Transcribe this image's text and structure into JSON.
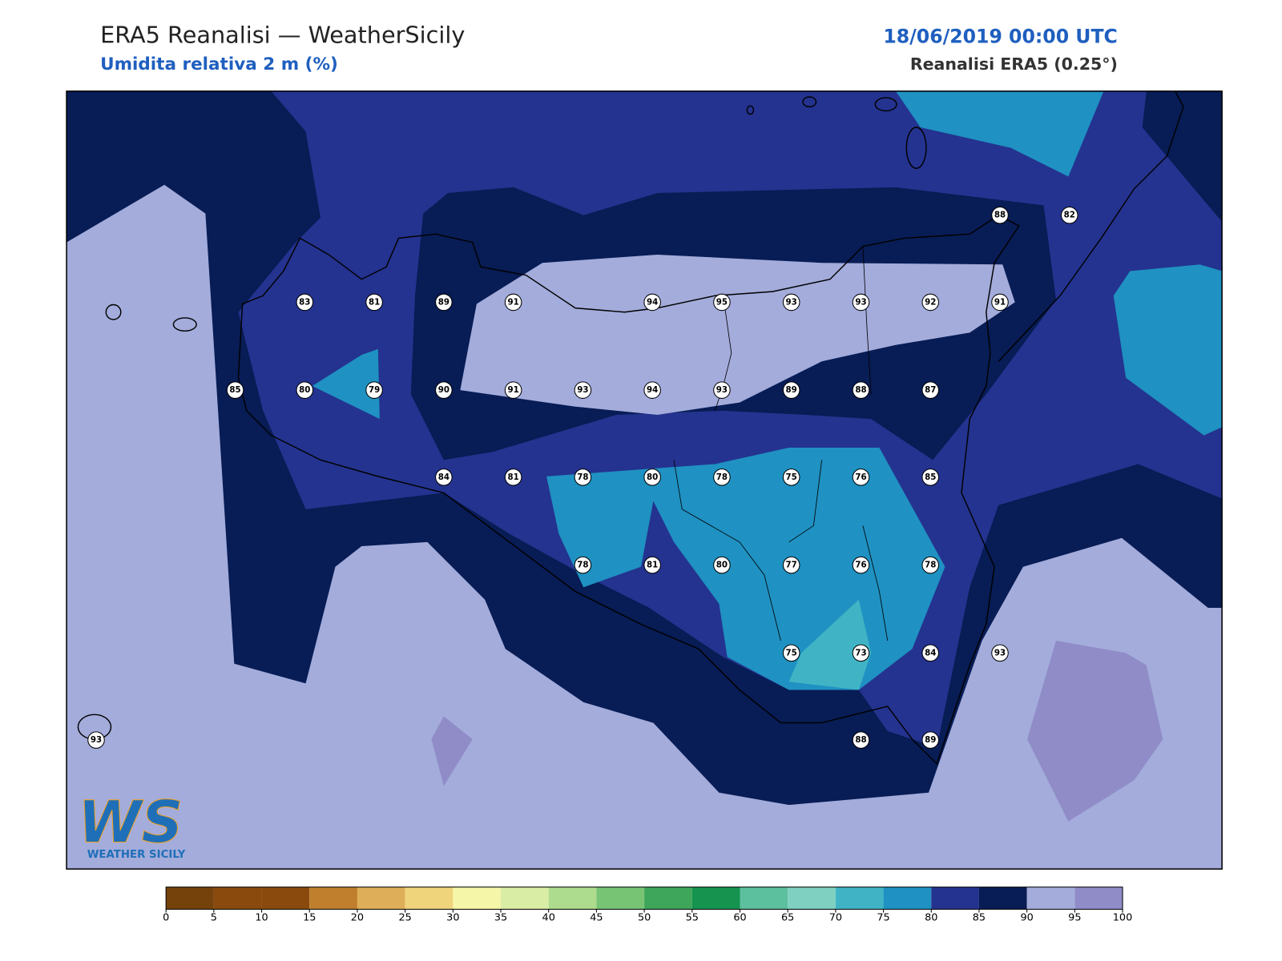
{
  "header": {
    "title": "ERA5 Reanalisi — WeatherSicily",
    "subtitle": "Umidita relativa 2 m (%)",
    "datetime": "18/06/2019 00:00 UTC",
    "source": "Reanalisi ERA5 (0.25°)"
  },
  "stations": [
    [
      null,
      null,
      null,
      null,
      null,
      null,
      null,
      null,
      null,
      null,
      null,
      null,
      null,
      88,
      82
    ],
    [
      null,
      null,
      null,
      83,
      81,
      89,
      91,
      null,
      94,
      95,
      93,
      93,
      92,
      91,
      null
    ],
    [
      null,
      null,
      85,
      80,
      79,
      90,
      91,
      93,
      94,
      93,
      89,
      88,
      87,
      null,
      null
    ],
    [
      null,
      null,
      null,
      null,
      null,
      84,
      81,
      78,
      80,
      78,
      75,
      76,
      85,
      null,
      null
    ],
    [
      null,
      null,
      null,
      null,
      null,
      null,
      null,
      78,
      81,
      80,
      77,
      76,
      78,
      null,
      null
    ],
    [
      null,
      null,
      null,
      null,
      null,
      null,
      null,
      null,
      null,
      null,
      75,
      73,
      84,
      93,
      null
    ],
    [
      93,
      null,
      null,
      null,
      null,
      null,
      null,
      null,
      null,
      null,
      null,
      88,
      89,
      null,
      null
    ]
  ],
  "colorbar": {
    "ticks": [
      0,
      5,
      10,
      15,
      20,
      25,
      30,
      35,
      40,
      45,
      50,
      55,
      60,
      65,
      70,
      75,
      80,
      85,
      90,
      95,
      100
    ],
    "colors": [
      "#74420a",
      "#8a4a0e",
      "#8a4a0e",
      "#bf7f2d",
      "#dfae58",
      "#f0d47c",
      "#f6f6a8",
      "#d9eda4",
      "#aedc8e",
      "#78c475",
      "#3ea65a",
      "#15934f",
      "#5cbf9d",
      "#7fd0c0",
      "#40b4c5",
      "#1f91c2",
      "#24338f",
      "#081c55",
      "#a3acdb",
      "#8f8cc8"
    ]
  },
  "logo": {
    "mark": "WS",
    "text": "WEATHER SICILY"
  }
}
